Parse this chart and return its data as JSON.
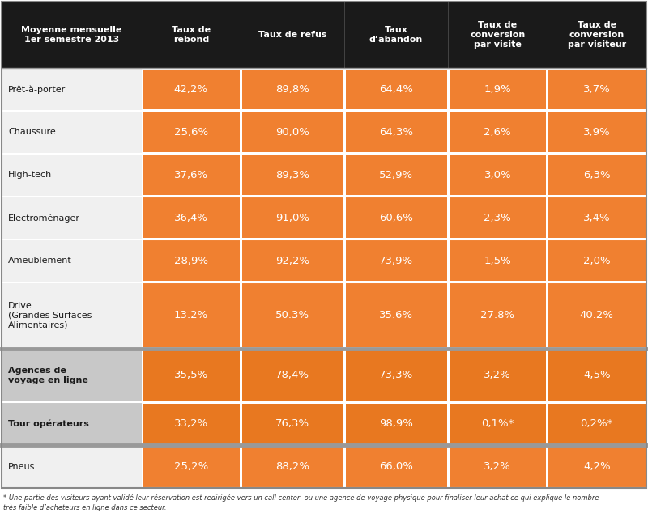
{
  "header_col": "Moyenne mensuelle\n1er semestre 2013",
  "headers": [
    "Taux de\nrebond",
    "Taux de refus",
    "Taux\nd’abandon",
    "Taux de\nconversion\npar visite",
    "Taux de\nconversion\npar visiteur"
  ],
  "rows": [
    {
      "label": "Prêt-à-porter",
      "values": [
        "42,2%",
        "89,8%",
        "64,4%",
        "1,9%",
        "3,7%"
      ],
      "group": "retail",
      "bold": false
    },
    {
      "label": "Chaussure",
      "values": [
        "25,6%",
        "90,0%",
        "64,3%",
        "2,6%",
        "3,9%"
      ],
      "group": "retail",
      "bold": false
    },
    {
      "label": "High-tech",
      "values": [
        "37,6%",
        "89,3%",
        "52,9%",
        "3,0%",
        "6,3%"
      ],
      "group": "retail",
      "bold": false
    },
    {
      "label": "Electroménager",
      "values": [
        "36,4%",
        "91,0%",
        "60,6%",
        "2,3%",
        "3,4%"
      ],
      "group": "retail",
      "bold": false
    },
    {
      "label": "Ameublement",
      "values": [
        "28,9%",
        "92,2%",
        "73,9%",
        "1,5%",
        "2,0%"
      ],
      "group": "retail",
      "bold": false
    },
    {
      "label": "Drive\n(Grandes Surfaces\nAlimentaires)",
      "values": [
        "13.2%",
        "50.3%",
        "35.6%",
        "27.8%",
        "40.2%"
      ],
      "group": "retail",
      "bold": false
    },
    {
      "label": "Agences de\nvoyage en ligne",
      "values": [
        "35,5%",
        "78,4%",
        "73,3%",
        "3,2%",
        "4,5%"
      ],
      "group": "travel",
      "bold": true
    },
    {
      "label": "Tour opérateurs",
      "values": [
        "33,2%",
        "76,3%",
        "98,9%",
        "0,1%*",
        "0,2%*"
      ],
      "group": "travel",
      "bold": true
    },
    {
      "label": "Pneus",
      "values": [
        "25,2%",
        "88,2%",
        "66,0%",
        "3,2%",
        "4,2%"
      ],
      "group": "pneus",
      "bold": false
    }
  ],
  "footnote_line1": "* Une partie des visiteurs ayant validé leur réservation est redirigée vers un call center  ou une agence de voyage physique pour finaliser leur achat ce qui explique le nombre",
  "footnote_line2": "très faible d’acheteurs en ligne dans ce secteur.",
  "header_bg": "#1a1a1a",
  "header_text": "#ffffff",
  "orange_retail": "#f08030",
  "orange_travel": "#e87820",
  "orange_pneus": "#f28535",
  "label_bg_retail": "#f0f0f0",
  "label_bg_travel": "#c8c8c8",
  "label_bg_pneus": "#f0f0f0",
  "label_text_retail": "#1a1a1a",
  "label_text_travel": "#1a1a1a",
  "sep_color": "#ffffff",
  "group_sep_color": "#b0b0b0",
  "fig_bg": "#ffffff"
}
